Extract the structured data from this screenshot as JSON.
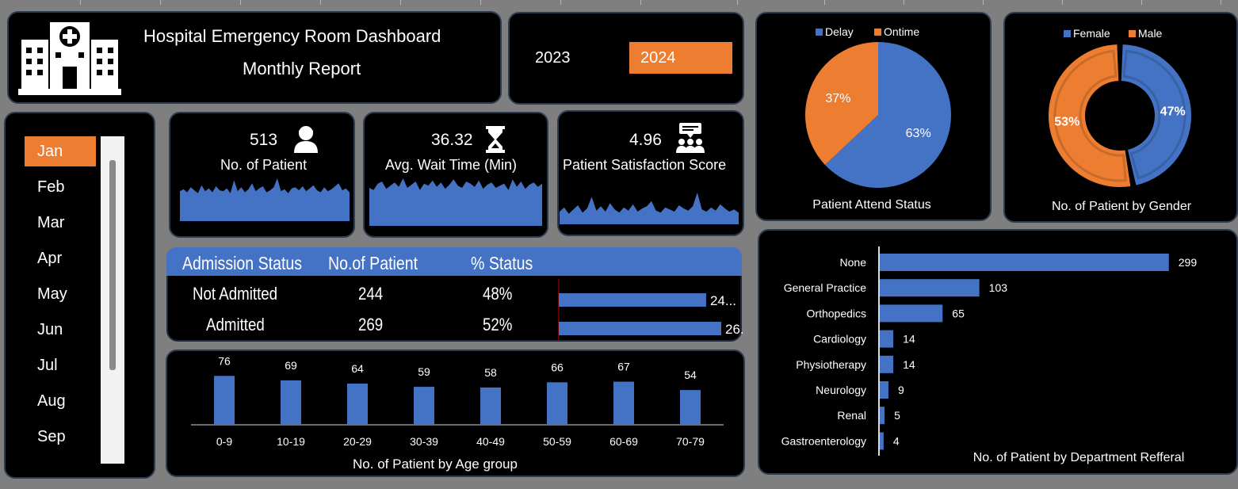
{
  "header": {
    "title": "Hospital Emergency Room Dashboard",
    "subtitle": "Monthly Report",
    "logo_icon": "hospital-icon"
  },
  "years": {
    "options": [
      "2023",
      "2024"
    ],
    "selected": "2024"
  },
  "months": {
    "items": [
      "Jan",
      "Feb",
      "Mar",
      "Apr",
      "May",
      "Jun",
      "Jul",
      "Aug",
      "Sep"
    ],
    "selected": "Jan"
  },
  "kpis": {
    "patients": {
      "value": "513",
      "label": "No. of Patient",
      "icon": "patient-icon",
      "trend": [
        30,
        32,
        29,
        34,
        31,
        28,
        36,
        30,
        33,
        29,
        35,
        31,
        30,
        33,
        28,
        41,
        30,
        34,
        29,
        32,
        38,
        30,
        33,
        35,
        29,
        31,
        34,
        43,
        30,
        32,
        28,
        33,
        34,
        31,
        35,
        30,
        33,
        36,
        31,
        29,
        34,
        30,
        32,
        35,
        38,
        31,
        33,
        29
      ]
    },
    "wait_time": {
      "value": "36.32",
      "label": "Avg. Wait Time (Min)",
      "icon": "hourglass-icon",
      "trend": [
        36,
        34,
        40,
        42,
        35,
        38,
        41,
        37,
        45,
        36,
        39,
        42,
        34,
        40,
        38,
        43,
        37,
        41,
        35,
        39,
        44,
        38,
        36,
        42,
        40,
        37,
        43,
        35,
        39,
        41,
        36,
        38,
        40,
        34,
        44,
        37,
        42,
        35,
        39,
        41,
        37,
        40
      ]
    },
    "satisfaction": {
      "value": "4.96",
      "label": "Patient Satisfaction Score",
      "icon": "feedback-icon",
      "trend": [
        12,
        16,
        10,
        14,
        18,
        11,
        15,
        26,
        13,
        17,
        12,
        20,
        14,
        11,
        16,
        13,
        19,
        12,
        15,
        17,
        22,
        13,
        11,
        16,
        14,
        12,
        18,
        15,
        13,
        17,
        30,
        14,
        12,
        16,
        13,
        19,
        15,
        12,
        14,
        11
      ]
    }
  },
  "admission": {
    "headers": [
      "Admission Status",
      "No.of Patient",
      "% Status"
    ],
    "rows": [
      {
        "status": "Not Admitted",
        "count": "244",
        "pct": "48%",
        "bar_label": "24...",
        "value": 244
      },
      {
        "status": "Admitted",
        "count": "269",
        "pct": "52%",
        "bar_label": "26.",
        "value": 269
      }
    ]
  },
  "colors": {
    "blue": "#4472c4",
    "orange": "#ed7d31",
    "panel": "#000000",
    "background": "#7f7f7f"
  },
  "chart_data": [
    {
      "type": "bar",
      "title": "No. of Patient by Age group",
      "categories": [
        "0-9",
        "10-19",
        "20-29",
        "30-39",
        "40-49",
        "50-59",
        "60-69",
        "70-79"
      ],
      "values": [
        76,
        69,
        64,
        59,
        58,
        66,
        67,
        54
      ],
      "ylim": [
        0,
        80
      ]
    },
    {
      "type": "pie",
      "title": "Patient Attend Status",
      "legend": [
        "Delay",
        "Ontime"
      ],
      "values": [
        63,
        37
      ],
      "labels": [
        "63%",
        "37%"
      ],
      "legend_position": "top"
    },
    {
      "type": "pie",
      "title": "No. of Patient by Gender",
      "legend": [
        "Female",
        "Male"
      ],
      "values": [
        47,
        53
      ],
      "labels": [
        "47%",
        "53%"
      ],
      "legend_position": "top"
    },
    {
      "type": "bar",
      "title": "No. of Patient by Department Refferal",
      "orientation": "horizontal",
      "categories": [
        "None",
        "General Practice",
        "Orthopedics",
        "Cardiology",
        "Physiotherapy",
        "Neurology",
        "Renal",
        "Gastroenterology"
      ],
      "values": [
        299,
        103,
        65,
        14,
        14,
        9,
        5,
        4
      ],
      "xlim": [
        0,
        300
      ]
    }
  ]
}
